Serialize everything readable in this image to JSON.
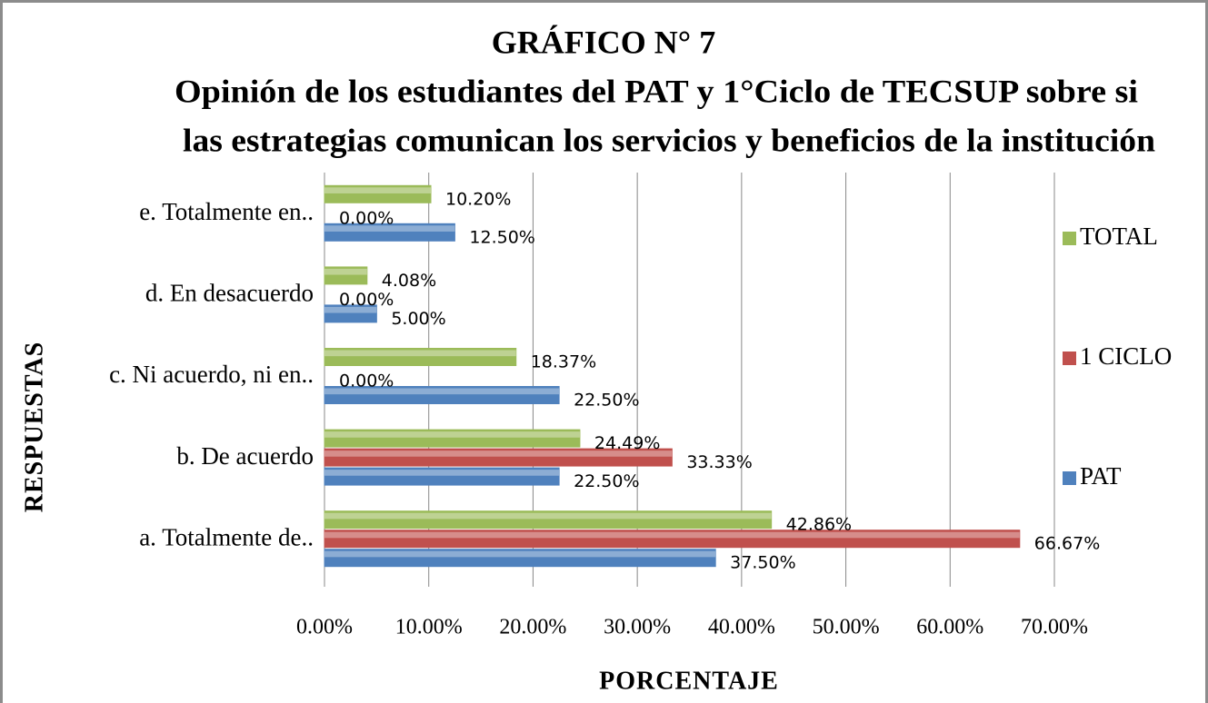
{
  "chart_data": {
    "type": "bar",
    "orientation": "horizontal",
    "title": [
      "GRÁFICO N° 7",
      "Opinión de los estudiantes del PAT y 1°Ciclo de TECSUP sobre si",
      "las estrategias comunican los servicios y beneficios de la institución"
    ],
    "x_label": "PORCENTAJE",
    "y_label": "RESPUESTAS",
    "categories": [
      "a. Totalmente de..",
      "b. De acuerdo",
      "c. Ni acuerdo, ni en..",
      "d. En desacuerdo",
      "e. Totalmente en.."
    ],
    "series": [
      {
        "name": "PAT",
        "color": "#4f81bd",
        "values": [
          37.5,
          22.5,
          22.5,
          5,
          12.5
        ],
        "value_labels": [
          "37.50%",
          "22.50%",
          "22.50%",
          "5.00%",
          "12.50%"
        ]
      },
      {
        "name": "1 CICLO",
        "color": "#c0504d",
        "values": [
          66.67,
          33.33,
          0,
          0,
          0
        ],
        "value_labels": [
          "66.67%",
          "33.33%",
          "0.00%",
          "0.00%",
          "0.00%"
        ]
      },
      {
        "name": "TOTAL",
        "color": "#9bbb59",
        "values": [
          42.86,
          24.49,
          18.37,
          4.08,
          10.2
        ],
        "value_labels": [
          "42.86%",
          "24.49%",
          "18.37%",
          "4.08%",
          "10.20%"
        ]
      }
    ],
    "xlim": [
      0,
      70
    ],
    "xticks": [
      {
        "value": 0,
        "label": "0.00%"
      },
      {
        "value": 10,
        "label": "10.00%"
      },
      {
        "value": 20,
        "label": "20.00%"
      },
      {
        "value": 30,
        "label": "30.00%"
      },
      {
        "value": 40,
        "label": "40.00%"
      },
      {
        "value": 50,
        "label": "50.00%"
      },
      {
        "value": 60,
        "label": "60.00%"
      },
      {
        "value": 70,
        "label": "70.00%"
      }
    ],
    "grid": true,
    "legend": "right"
  }
}
